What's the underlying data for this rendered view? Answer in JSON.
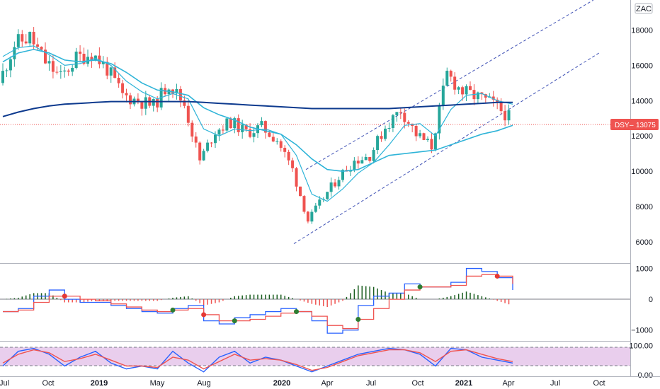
{
  "currency": "ZAC",
  "last_price_label": {
    "ticker": "DSY",
    "separator": "–",
    "price": "13075",
    "color": "#ef5350"
  },
  "time_axis": [
    {
      "label": "Jul",
      "bold": false
    },
    {
      "label": "Oct",
      "bold": false
    },
    {
      "label": "2019",
      "bold": true
    },
    {
      "label": "May",
      "bold": false
    },
    {
      "label": "Aug",
      "bold": false
    },
    {
      "label": "2020",
      "bold": true
    },
    {
      "label": "Apr",
      "bold": false
    },
    {
      "label": "Jul",
      "bold": false
    },
    {
      "label": "Oct",
      "bold": false
    },
    {
      "label": "2021",
      "bold": true
    },
    {
      "label": "Apr",
      "bold": false
    },
    {
      "label": "Jul",
      "bold": false
    },
    {
      "label": "Oct",
      "bold": false
    }
  ],
  "colors": {
    "up": "#26a69a",
    "down": "#ef5350",
    "ma_long": "#0d3a8e",
    "ma_short": "#2fb4d8",
    "channel": "#3f51b5",
    "stoch_k": "#2962ff",
    "stoch_d": "#ef5350",
    "macd_line": "#2962ff",
    "signal_line": "#ef5350",
    "rsi_band": "#e1bee7"
  },
  "chart_data": [
    {
      "type": "candlestick",
      "title": "",
      "y_ticks": [
        6000,
        8000,
        10000,
        12000,
        14000,
        16000,
        18000
      ],
      "ylim": [
        4800,
        19700
      ],
      "last_price": 13075,
      "x": [
        "2018-07",
        "2018-08",
        "2018-09",
        "2018-10",
        "2018-11",
        "2018-12",
        "2019-01",
        "2019-02",
        "2019-03",
        "2019-04",
        "2019-05",
        "2019-06",
        "2019-07",
        "2019-08",
        "2019-09",
        "2019-10",
        "2019-11",
        "2019-12",
        "2020-01",
        "2020-02",
        "2020-03",
        "2020-04",
        "2020-05",
        "2020-06",
        "2020-07",
        "2020-08",
        "2020-09",
        "2020-10",
        "2020-11",
        "2020-12",
        "2021-01",
        "2021-02",
        "2021-03",
        "2021-04"
      ],
      "close": [
        15000,
        17200,
        17600,
        16200,
        15300,
        16400,
        16700,
        15800,
        14300,
        14000,
        13700,
        15000,
        13800,
        10600,
        12300,
        12800,
        12200,
        12500,
        11800,
        10100,
        7200,
        8500,
        9700,
        10600,
        10900,
        12500,
        13500,
        12100,
        11400,
        15500,
        14500,
        14200,
        13800,
        13075
      ],
      "series": [
        {
          "name": "",
          "kind": "moving_average_short",
          "values": [
            16500,
            17000,
            17100,
            16600,
            16000,
            16100,
            16400,
            16000,
            15100,
            14500,
            14100,
            14400,
            14100,
            12400,
            12000,
            12400,
            12300,
            12400,
            12100,
            10900,
            8700,
            8300,
            9000,
            9900,
            10500,
            11500,
            12600,
            12700,
            12000,
            13500,
            14300,
            14400,
            14000,
            13800
          ]
        },
        {
          "name": "",
          "kind": "moving_average_mid",
          "values": [
            16200,
            16700,
            16900,
            16700,
            16300,
            16200,
            16300,
            16100,
            15600,
            15000,
            14600,
            14500,
            14300,
            13600,
            13200,
            12900,
            12500,
            12300,
            12100,
            11500,
            10700,
            10100,
            10000,
            10100,
            10500,
            10900,
            11000,
            11100,
            11200,
            11500,
            11800,
            12100,
            12300,
            12600
          ]
        },
        {
          "name": "",
          "kind": "moving_average_long",
          "values": [
            13100,
            13350,
            13550,
            13700,
            13800,
            13850,
            13900,
            13950,
            13950,
            13950,
            13950,
            13950,
            13950,
            13900,
            13850,
            13800,
            13750,
            13700,
            13650,
            13600,
            13550,
            13550,
            13550,
            13550,
            13550,
            13550,
            13600,
            13650,
            13700,
            13750,
            13800,
            13850,
            13900,
            13900
          ]
        }
      ]
    },
    {
      "type": "line",
      "title": "",
      "y_ticks": [
        -1000,
        0,
        1000
      ],
      "ylim": [
        -1350,
        1150
      ],
      "series": [
        {
          "name": "",
          "kind": "macd",
          "values": [
            -400,
            -300,
            100,
            300,
            0,
            -100,
            -100,
            -200,
            -300,
            -400,
            -450,
            -300,
            -200,
            -700,
            -800,
            -600,
            -500,
            -400,
            -300,
            -400,
            -700,
            -1100,
            -1000,
            -200,
            100,
            200,
            500,
            400,
            400,
            550,
            1000,
            900,
            700,
            300
          ]
        },
        {
          "name": "",
          "kind": "signal",
          "values": [
            -400,
            -350,
            -100,
            100,
            100,
            0,
            -50,
            -150,
            -250,
            -350,
            -400,
            -350,
            -300,
            -500,
            -700,
            -700,
            -650,
            -550,
            -450,
            -400,
            -550,
            -850,
            -950,
            -650,
            -300,
            0,
            300,
            400,
            400,
            450,
            750,
            800,
            750,
            500
          ]
        }
      ]
    },
    {
      "type": "line",
      "title": "",
      "y_ticks": [
        0,
        100
      ],
      "tick_labels": [
        "0.00",
        "100.00"
      ],
      "ylim": [
        -5,
        113
      ],
      "band": [
        20,
        80
      ],
      "series": [
        {
          "name": "",
          "kind": "stoch_k",
          "values": [
            30,
            80,
            90,
            70,
            30,
            60,
            80,
            40,
            20,
            30,
            20,
            80,
            40,
            10,
            60,
            80,
            40,
            60,
            50,
            30,
            10,
            30,
            50,
            70,
            80,
            90,
            85,
            70,
            30,
            90,
            85,
            60,
            50,
            40
          ]
        },
        {
          "name": "",
          "kind": "stoch_d",
          "values": [
            40,
            70,
            85,
            75,
            45,
            55,
            70,
            50,
            30,
            30,
            25,
            60,
            50,
            20,
            45,
            70,
            50,
            55,
            50,
            35,
            15,
            25,
            45,
            65,
            75,
            85,
            85,
            75,
            45,
            80,
            85,
            70,
            55,
            45
          ]
        }
      ]
    }
  ]
}
